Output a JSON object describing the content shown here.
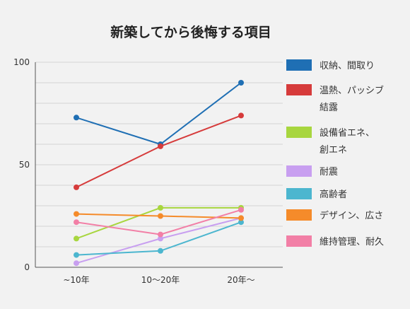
{
  "chart_data": {
    "type": "line",
    "title": "新築してから後悔する項目",
    "categories": [
      "~10年",
      "10～20年",
      "20年～"
    ],
    "ylim": [
      0,
      100
    ],
    "yticks": [
      "0",
      "50",
      "100"
    ],
    "grid": true,
    "legend_position": "right",
    "series": [
      {
        "name": "収納、間取り",
        "color": "#1f6fb4",
        "values": [
          73,
          60,
          90
        ]
      },
      {
        "name": "温熱、パッシブ結露",
        "color": "#d63b3b",
        "values": [
          39,
          59,
          74
        ]
      },
      {
        "name": "設備省エネ、創エネ",
        "color": "#a8d63f",
        "values": [
          14,
          29,
          29
        ]
      },
      {
        "name": "耐震",
        "color": "#c89ff0",
        "values": [
          2,
          14,
          24
        ]
      },
      {
        "name": "高齢者",
        "color": "#4cb6cf",
        "values": [
          6,
          8,
          22
        ]
      },
      {
        "name": "デザイン、広さ",
        "color": "#f58b2a",
        "values": [
          26,
          25,
          24
        ]
      },
      {
        "name": "維持管理、耐久",
        "color": "#f27fa6",
        "values": [
          22,
          16,
          28
        ]
      }
    ]
  }
}
